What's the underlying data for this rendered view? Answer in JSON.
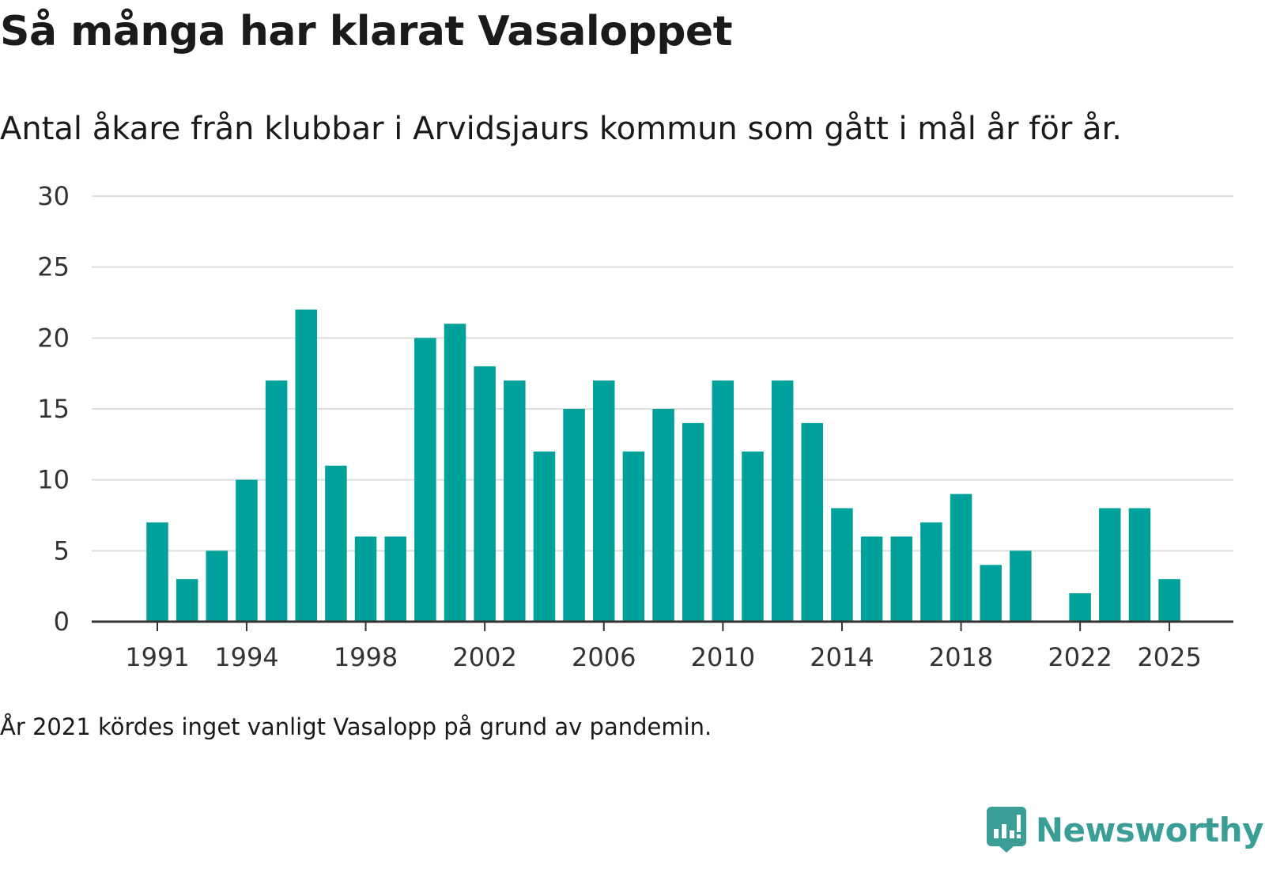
{
  "title": "Så många har klarat Vasaloppet",
  "subtitle": "Antal åkare från klubbar i Arvidsjaurs kommun som gått i mål år för år.",
  "note": "År 2021 kördes inget vanligt Vasalopp på grund av pandemin.",
  "brand": {
    "name": "Newsworthy",
    "color": "#3a9d96"
  },
  "chart_data": {
    "type": "bar",
    "title": "Så många har klarat Vasaloppet",
    "xlabel": "",
    "ylabel": "",
    "ylim": [
      0,
      30
    ],
    "yticks": [
      0,
      5,
      10,
      15,
      20,
      25,
      30
    ],
    "xticks": [
      1991,
      1994,
      1998,
      2002,
      2006,
      2010,
      2014,
      2018,
      2022,
      2025
    ],
    "grid": true,
    "bar_color": "#00a19a",
    "categories": [
      1991,
      1992,
      1993,
      1994,
      1995,
      1996,
      1997,
      1998,
      1999,
      2000,
      2001,
      2002,
      2003,
      2004,
      2005,
      2006,
      2007,
      2008,
      2009,
      2010,
      2011,
      2012,
      2013,
      2014,
      2015,
      2016,
      2017,
      2018,
      2019,
      2020,
      2021,
      2022,
      2023,
      2024,
      2025
    ],
    "values": [
      7,
      3,
      5,
      10,
      17,
      22,
      11,
      6,
      6,
      20,
      21,
      18,
      17,
      12,
      15,
      17,
      12,
      15,
      14,
      17,
      12,
      17,
      14,
      8,
      6,
      6,
      7,
      9,
      4,
      5,
      null,
      2,
      8,
      8,
      3
    ]
  }
}
